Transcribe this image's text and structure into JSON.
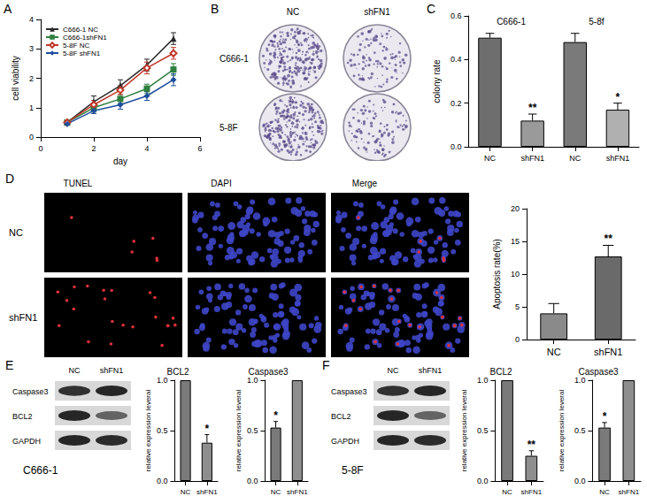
{
  "chart_data": [
    {
      "panel": "A",
      "type": "line",
      "x_label": "day",
      "y_label": "cell viability",
      "xlim": [
        0,
        6
      ],
      "xticks": [
        0,
        2,
        4,
        6
      ],
      "ylim": [
        0,
        4
      ],
      "yticks": [
        0,
        1,
        2,
        3,
        4
      ],
      "legend": "upper left",
      "x": [
        1,
        2,
        3,
        4,
        5
      ],
      "series": [
        {
          "name": "C666-1 NC",
          "color": "#2a2a2a",
          "marker": "triangle",
          "values": [
            0.5,
            1.2,
            1.75,
            2.45,
            3.35
          ],
          "errors": [
            0.05,
            0.2,
            0.2,
            0.2,
            0.2
          ]
        },
        {
          "name": "C666-1shFN1",
          "color": "#2f7f3f",
          "marker": "square",
          "values": [
            0.5,
            1.0,
            1.3,
            1.65,
            2.3
          ],
          "errors": [
            0.05,
            0.15,
            0.15,
            0.15,
            0.2
          ]
        },
        {
          "name": "5-8F NC",
          "color": "#c0392b",
          "marker": "open_diamond",
          "values": [
            0.5,
            1.1,
            1.6,
            2.35,
            2.85
          ],
          "errors": [
            0.05,
            0.15,
            0.15,
            0.2,
            0.2
          ]
        },
        {
          "name": "5-8F shFN1",
          "color": "#1f4e9c",
          "marker": "diamond",
          "values": [
            0.45,
            0.9,
            1.1,
            1.4,
            1.95
          ],
          "errors": [
            0.05,
            0.1,
            0.15,
            0.15,
            0.2
          ]
        }
      ]
    },
    {
      "panel": "C",
      "type": "bar",
      "y_label": "colony rate",
      "categories": [
        "NC",
        "shFN1",
        "NC",
        "shFN1"
      ],
      "groups": [
        "C666-1",
        "5-8f"
      ],
      "values": [
        0.5,
        0.12,
        0.48,
        0.17
      ],
      "errors": [
        0.02,
        0.03,
        0.04,
        0.03
      ],
      "significance": [
        null,
        "**",
        null,
        "*"
      ],
      "colors": [
        "#6e6e6e",
        "#9a9a9a",
        "#7a7a7a",
        "#b0b0b0"
      ],
      "ylim": [
        0,
        0.6
      ],
      "yticks": [
        {
          "value": 0,
          "label": "0.0"
        },
        0.2,
        0.4,
        0.6
      ]
    },
    {
      "type": "bar",
      "y_label": "Apoptosis rate(%)",
      "categories": [
        "NC",
        "shFN1"
      ],
      "values": [
        4.0,
        12.7
      ],
      "errors": [
        1.5,
        1.7
      ],
      "significance": [
        null,
        "**"
      ],
      "colors": [
        "#8a8a8a",
        "#6a6a6a"
      ],
      "ylim": [
        0,
        20
      ],
      "yticks": [
        0,
        5,
        10,
        15,
        20
      ]
    },
    {
      "type": "bar",
      "title": "BCL2",
      "y_label": "relative expression leveral",
      "categories": [
        "NC",
        "shFN1"
      ],
      "values": [
        1.0,
        0.38
      ],
      "errors": [
        null,
        0.08
      ],
      "significance": [
        null,
        "*"
      ],
      "colors": [
        "#7a7a7a",
        "#8e8e8e"
      ],
      "ylim": [
        0,
        1
      ],
      "yticks": [
        {
          "value": 0,
          "label": "0.0"
        },
        0.5,
        {
          "value": 1,
          "label": "1.0"
        }
      ]
    },
    {
      "type": "bar",
      "title": "Caspase3",
      "y_label": "relative expression leveral",
      "categories": [
        "NC",
        "shFN1"
      ],
      "values": [
        0.53,
        1.0
      ],
      "errors": [
        0.06,
        null
      ],
      "significance": [
        "*",
        null
      ],
      "colors": [
        "#7a7a7a",
        "#8e8e8e"
      ],
      "ylim": [
        0,
        1
      ],
      "yticks": [
        {
          "value": 0,
          "label": "0.0"
        },
        0.5,
        {
          "value": 1,
          "label": "1.0"
        }
      ]
    },
    {
      "type": "bar",
      "title": "BCL2",
      "y_label": "relative expression leveral",
      "categories": [
        "NC",
        "shFN1"
      ],
      "values": [
        1.0,
        0.25
      ],
      "errors": [
        null,
        0.05
      ],
      "significance": [
        null,
        "**"
      ],
      "colors": [
        "#7a7a7a",
        "#8e8e8e"
      ],
      "ylim": [
        0,
        1
      ],
      "yticks": [
        {
          "value": 0,
          "label": "0.0"
        },
        0.5,
        {
          "value": 1,
          "label": "1.0"
        }
      ]
    },
    {
      "type": "bar",
      "title": "Caspase3",
      "y_label": "relative expression leveral",
      "categories": [
        "NC",
        "shFN1"
      ],
      "values": [
        0.53,
        1.0
      ],
      "errors": [
        0.05,
        null
      ],
      "significance": [
        "*",
        null
      ],
      "colors": [
        "#7a7a7a",
        "#8e8e8e"
      ],
      "ylim": [
        0,
        1
      ],
      "yticks": [
        {
          "value": 0,
          "label": "0.0"
        },
        0.5,
        {
          "value": 1,
          "label": "1.0"
        }
      ]
    }
  ],
  "images": {
    "B": {
      "panel": "B",
      "columns": [
        "NC",
        "shFN1"
      ],
      "rows": [
        "C666-1",
        "5-8F"
      ]
    },
    "D": {
      "panel": "D",
      "columns": [
        "TUNEL",
        "DAPI",
        "Merge"
      ],
      "rows": [
        "NC",
        "shFN1"
      ]
    },
    "E": {
      "panel": "E",
      "columns": [
        "NC",
        "shFN1"
      ],
      "rows": [
        "Caspase3",
        "BCL2",
        "GAPDH"
      ],
      "cell_line": "C666-1"
    },
    "F": {
      "panel": "F",
      "columns": [
        "NC",
        "shFN1"
      ],
      "rows": [
        "Caspase3",
        "BCL2",
        "GAPDH"
      ],
      "cell_line": "5-8F"
    }
  }
}
